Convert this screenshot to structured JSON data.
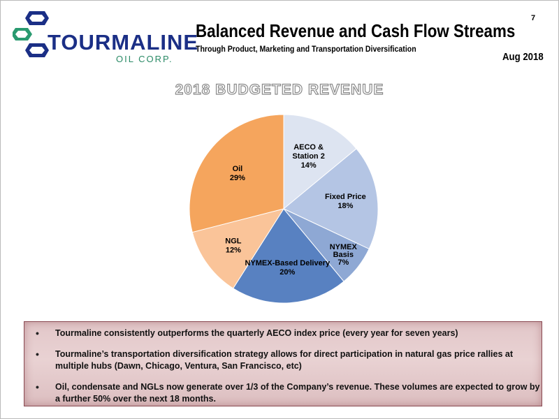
{
  "logo": {
    "name": "TOURMALINE",
    "sub": "OIL CORP."
  },
  "header": {
    "title": "Balanced Revenue and Cash Flow Streams",
    "subtitle": "Through Product, Marketing and Transportation Diversification",
    "page_number": "7",
    "date": "Aug 2018"
  },
  "chart_data": {
    "type": "pie",
    "title": "2018 BUDGETED REVENUE",
    "series": [
      {
        "name": "AECO & Station 2",
        "label_lines": [
          "AECO &",
          "Station 2",
          "14%"
        ],
        "value": 14,
        "color": "#dde4f1"
      },
      {
        "name": "Fixed Price",
        "label_lines": [
          "Fixed Price",
          "18%"
        ],
        "value": 18,
        "color": "#b4c5e4"
      },
      {
        "name": "NYMEX Basis",
        "label_lines": [
          "NYMEX",
          "Basis",
          "7%"
        ],
        "value": 7,
        "color": "#8ea8d4"
      },
      {
        "name": "NYMEX-Based Delivery",
        "label_lines": [
          "NYMEX-Based Delivery",
          "20%"
        ],
        "value": 20,
        "color": "#5881c1"
      },
      {
        "name": "NGL",
        "label_lines": [
          "NGL",
          "12%"
        ],
        "value": 12,
        "color": "#fac499"
      },
      {
        "name": "Oil",
        "label_lines": [
          "Oil",
          "29%"
        ],
        "value": 29,
        "color": "#f5a55d"
      }
    ]
  },
  "bullets": [
    "Tourmaline consistently outperforms the quarterly AECO index price (every year for seven years)",
    "Tourmaline’s transportation diversification strategy allows for direct participation in natural gas price rallies at multiple hubs (Dawn, Chicago, Ventura, San Francisco, etc)",
    "Oil, condensate and NGLs now generate over 1/3 of the Company’s revenue. These volumes are expected to grow by a further 50% over the next 18 months."
  ]
}
